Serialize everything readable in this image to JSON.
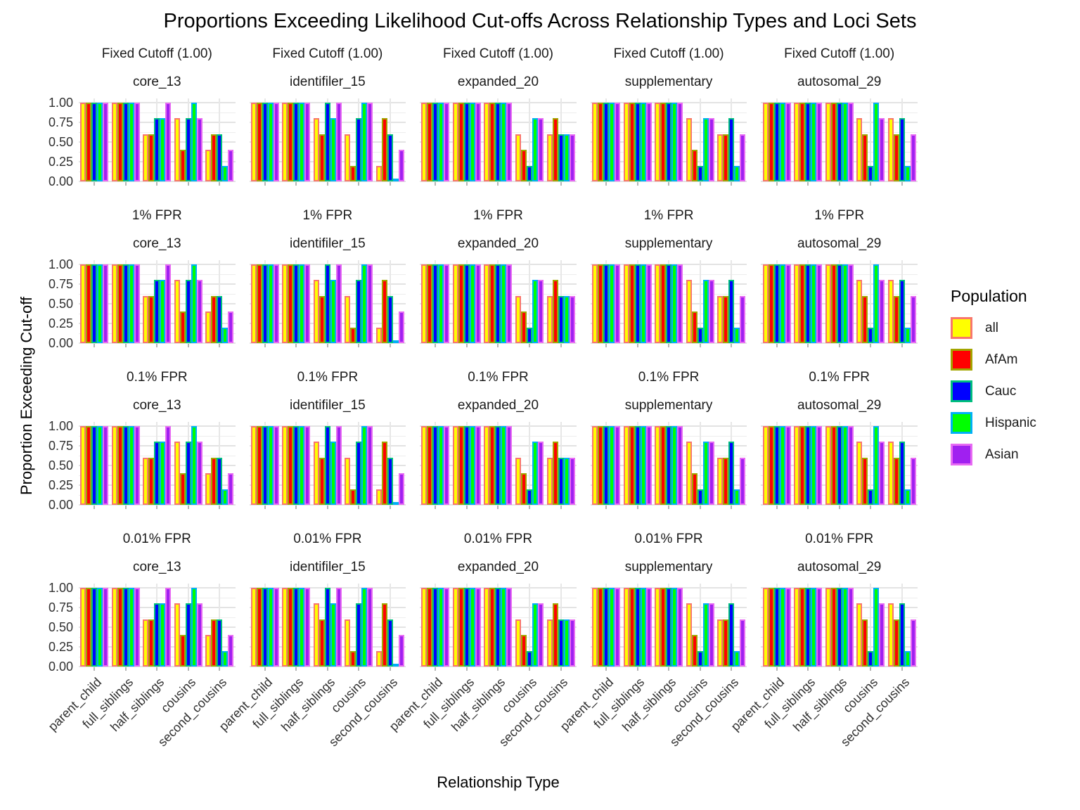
{
  "title": "Proportions Exceeding Likelihood Cut-offs Across Relationship Types and Loci Sets",
  "axes": {
    "x_title": "Relationship Type",
    "y_title": "Proportion Exceeding Cut-off",
    "y_tick_labels": [
      "1.00",
      "0.75",
      "0.50",
      "0.25",
      "0.00"
    ]
  },
  "legend": {
    "title": "Population",
    "position": "right"
  },
  "chart_data": {
    "type": "bar",
    "title": "Proportions Exceeding Likelihood Cut-offs Across Relationship Types and Loci Sets",
    "xlabel": "Relationship Type",
    "ylabel": "Proportion Exceeding Cut-off",
    "ylim": [
      0,
      1
    ],
    "y_major_ticks": [
      1.0,
      0.75,
      0.5,
      0.25,
      0.0
    ],
    "y_minor_ticks": [
      0.875,
      0.625,
      0.375,
      0.125
    ],
    "grid": true,
    "legend_position": "right",
    "facet_row_labels": [
      "Fixed Cutoff (1.00)",
      "1% FPR",
      "0.1% FPR",
      "0.01% FPR"
    ],
    "facet_col_labels": [
      "core_13",
      "identifiler_15",
      "expanded_20",
      "supplementary",
      "autosomal_29"
    ],
    "categories": [
      "parent_child",
      "full_siblings",
      "half_siblings",
      "cousins",
      "second_cousins"
    ],
    "series": [
      {
        "name": "all",
        "fill": "#FFFF00",
        "outline": "#F8766D"
      },
      {
        "name": "AfAm",
        "fill": "#FF0000",
        "outline": "#A3A500"
      },
      {
        "name": "Cauc",
        "fill": "#0000FF",
        "outline": "#00BF7D"
      },
      {
        "name": "Hispanic",
        "fill": "#00FF00",
        "outline": "#00B0F6"
      },
      {
        "name": "Asian",
        "fill": "#A020F0",
        "outline": "#E76BF3"
      }
    ],
    "values_identical_across_rows": true,
    "values_by_loci_set": {
      "core_13": {
        "parent_child": [
          1.0,
          1.0,
          1.0,
          1.0,
          1.0
        ],
        "full_siblings": [
          1.0,
          1.0,
          1.0,
          1.0,
          1.0
        ],
        "half_siblings": [
          0.6,
          0.6,
          0.8,
          0.8,
          1.0
        ],
        "cousins": [
          0.8,
          0.4,
          0.8,
          1.0,
          0.8
        ],
        "second_cousins": [
          0.4,
          0.6,
          0.6,
          0.2,
          0.4
        ]
      },
      "identifiler_15": {
        "parent_child": [
          1.0,
          1.0,
          1.0,
          1.0,
          1.0
        ],
        "full_siblings": [
          1.0,
          1.0,
          1.0,
          1.0,
          1.0
        ],
        "half_siblings": [
          0.8,
          0.6,
          1.0,
          0.8,
          1.0
        ],
        "cousins": [
          0.6,
          0.2,
          0.8,
          1.0,
          1.0
        ],
        "second_cousins": [
          0.2,
          0.8,
          0.6,
          0.0,
          0.4
        ]
      },
      "expanded_20": {
        "parent_child": [
          1.0,
          1.0,
          1.0,
          1.0,
          1.0
        ],
        "full_siblings": [
          1.0,
          1.0,
          1.0,
          1.0,
          1.0
        ],
        "half_siblings": [
          1.0,
          1.0,
          1.0,
          1.0,
          1.0
        ],
        "cousins": [
          0.6,
          0.4,
          0.2,
          0.8,
          0.8
        ],
        "second_cousins": [
          0.6,
          0.8,
          0.6,
          0.6,
          0.6
        ]
      },
      "supplementary": {
        "parent_child": [
          1.0,
          1.0,
          1.0,
          1.0,
          1.0
        ],
        "full_siblings": [
          1.0,
          1.0,
          1.0,
          1.0,
          1.0
        ],
        "half_siblings": [
          1.0,
          1.0,
          1.0,
          1.0,
          1.0
        ],
        "cousins": [
          0.8,
          0.4,
          0.2,
          0.8,
          0.8
        ],
        "second_cousins": [
          0.6,
          0.6,
          0.8,
          0.2,
          0.6
        ]
      },
      "autosomal_29": {
        "parent_child": [
          1.0,
          1.0,
          1.0,
          1.0,
          1.0
        ],
        "full_siblings": [
          1.0,
          1.0,
          1.0,
          1.0,
          1.0
        ],
        "half_siblings": [
          1.0,
          1.0,
          1.0,
          1.0,
          1.0
        ],
        "cousins": [
          0.8,
          0.6,
          0.2,
          1.0,
          0.8
        ],
        "second_cousins": [
          0.8,
          0.6,
          0.8,
          0.2,
          0.6
        ]
      }
    },
    "style": {
      "grid_major_color": "#e3e3e3",
      "grid_minor_color": "#ededed",
      "tick_mark_color": "#b5b5b5",
      "background": "#ffffff"
    }
  }
}
